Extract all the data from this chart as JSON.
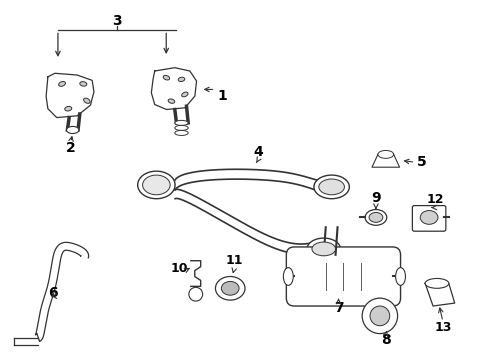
{
  "background_color": "#ffffff",
  "line_color": "#333333",
  "text_color": "#000000",
  "figsize": [
    4.89,
    3.6
  ],
  "dpi": 100
}
